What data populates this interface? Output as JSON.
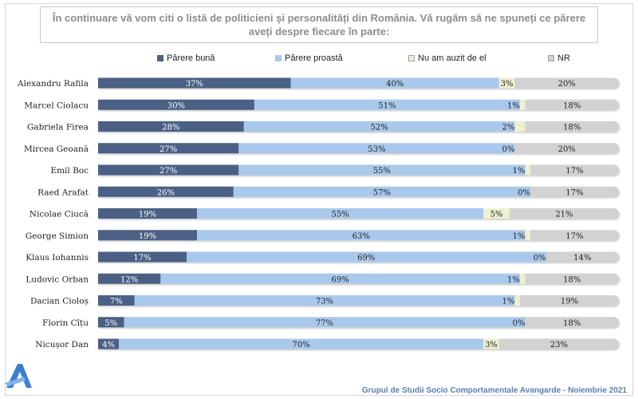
{
  "title": "În continuare vă vom citi o listă de politicieni și personalități din România. Vă rugăm să ne spuneți ce părere aveți despre fiecare în parte:",
  "legend": [
    "Părere bună",
    "Părere proastă",
    "Nu am auzit de el",
    "NR"
  ],
  "colors": {
    "good": "#4c6185",
    "bad": "#a9c9ec",
    "unknown": "#eef1d0",
    "nr": "#d2d2d2",
    "footer": "#5b7fb3",
    "logo": "#3d7fd1"
  },
  "footer": "Grupul de Studii Socio Comportamentale Avangarde  - Noiembrie 2021",
  "logo_icon": "avangarde-a-logo-icon",
  "chart_data": {
    "type": "bar",
    "orientation": "horizontal",
    "stacked": true,
    "units": "%",
    "categories": [
      "Alexandru Rafila",
      "Marcel Ciolacu",
      "Gabriela Firea",
      "Mircea Geoană",
      "Emil Boc",
      "Raed Arafat",
      "Nicolae Ciucă",
      "George Simion",
      "Klaus Iohannis",
      "Ludovic Orban",
      "Dacian Cioloș",
      "Florin Cîțu",
      "Nicușor Dan"
    ],
    "series": [
      {
        "name": "Părere bună",
        "values": [
          37,
          30,
          28,
          27,
          27,
          26,
          19,
          19,
          17,
          12,
          7,
          5,
          4
        ]
      },
      {
        "name": "Părere proastă",
        "values": [
          40,
          51,
          52,
          53,
          55,
          57,
          55,
          63,
          69,
          69,
          73,
          77,
          70
        ]
      },
      {
        "name": "Nu am auzit de el",
        "values": [
          3,
          1,
          2,
          0,
          1,
          0,
          5,
          1,
          0,
          1,
          1,
          0,
          3
        ]
      },
      {
        "name": "NR",
        "values": [
          20,
          18,
          18,
          20,
          17,
          17,
          21,
          17,
          14,
          18,
          19,
          18,
          23
        ]
      }
    ],
    "xlim": [
      0,
      100
    ],
    "legend_position": "top",
    "grid": false
  }
}
